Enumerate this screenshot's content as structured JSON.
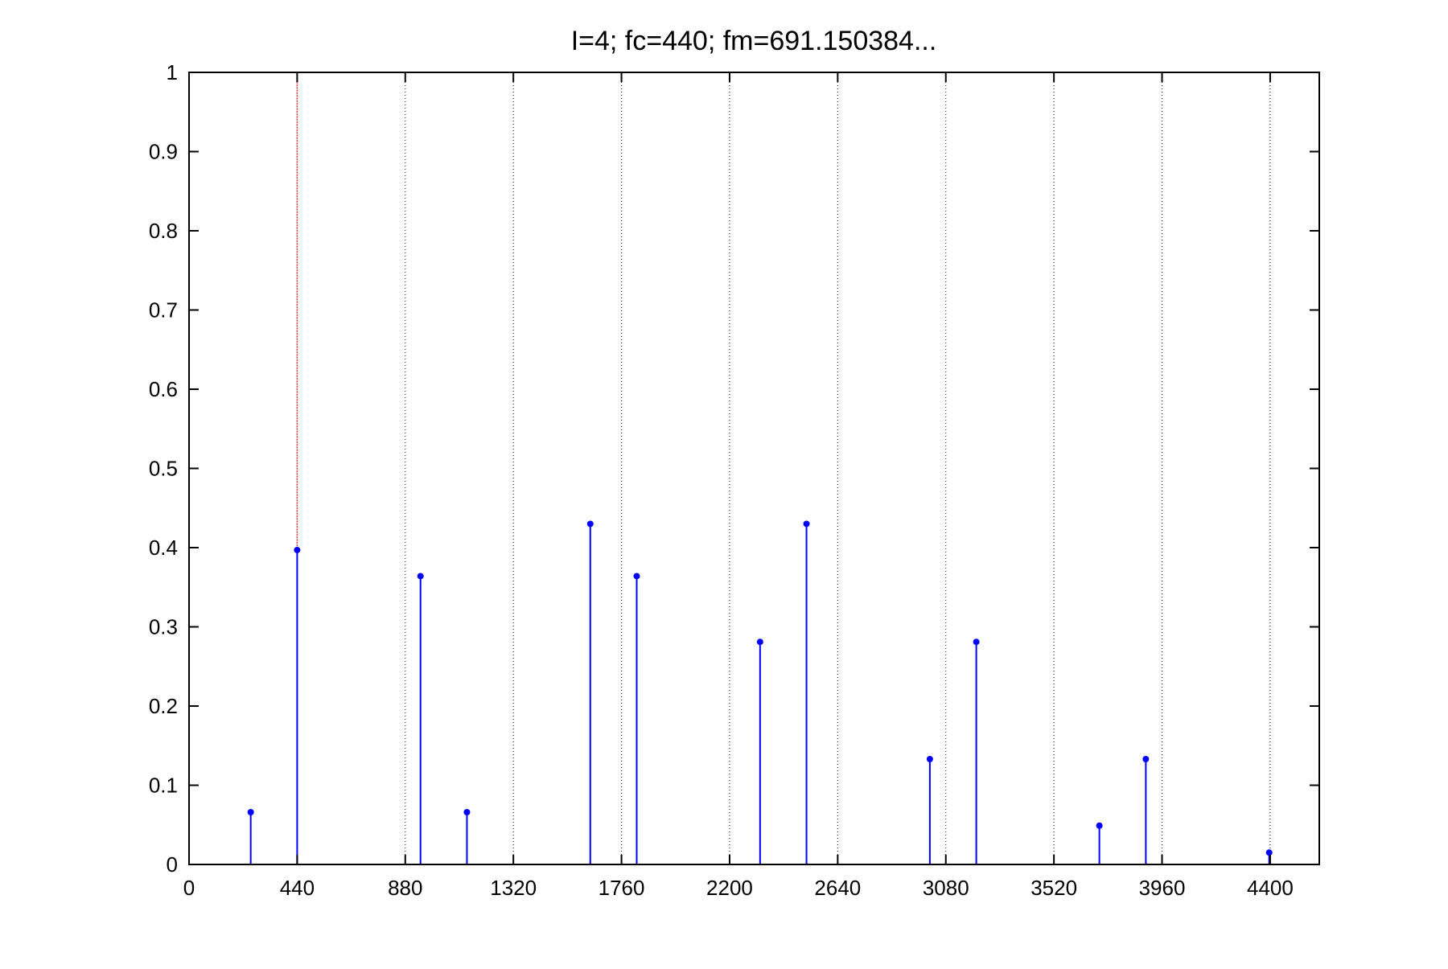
{
  "chart_data": {
    "type": "stem",
    "title": "I=4; fc=440; fm=691.150384...",
    "xlabel": "",
    "ylabel": "",
    "xlim": [
      0,
      4600
    ],
    "ylim": [
      0,
      1
    ],
    "x_ticks": [
      0,
      440,
      880,
      1320,
      1760,
      2200,
      2640,
      3080,
      3520,
      3960,
      4400
    ],
    "x_tick_labels": [
      "0",
      "440",
      "880",
      "1320",
      "1760",
      "2200",
      "2640",
      "3080",
      "3520",
      "3960",
      "4400"
    ],
    "y_ticks": [
      0,
      0.1,
      0.2,
      0.3,
      0.4,
      0.5,
      0.6,
      0.7,
      0.8,
      0.9,
      1
    ],
    "y_tick_labels": [
      "0",
      "0.1",
      "0.2",
      "0.3",
      "0.4",
      "0.5",
      "0.6",
      "0.7",
      "0.8",
      "0.9",
      "1"
    ],
    "grid": {
      "x": "dotted",
      "y": "off"
    },
    "reference_line": {
      "x": 440,
      "color": "#cc0000"
    },
    "series": [
      {
        "color": "#0000ff",
        "points": [
          {
            "x": 251,
            "y": 0.066
          },
          {
            "x": 440,
            "y": 0.397
          },
          {
            "x": 942,
            "y": 0.364
          },
          {
            "x": 1131,
            "y": 0.066
          },
          {
            "x": 1633,
            "y": 0.43
          },
          {
            "x": 1822,
            "y": 0.364
          },
          {
            "x": 2324,
            "y": 0.281
          },
          {
            "x": 2513,
            "y": 0.43
          },
          {
            "x": 3015,
            "y": 0.133
          },
          {
            "x": 3204,
            "y": 0.281
          },
          {
            "x": 3705,
            "y": 0.049
          },
          {
            "x": 3894,
            "y": 0.133
          },
          {
            "x": 4396,
            "y": 0.015
          }
        ]
      }
    ]
  }
}
